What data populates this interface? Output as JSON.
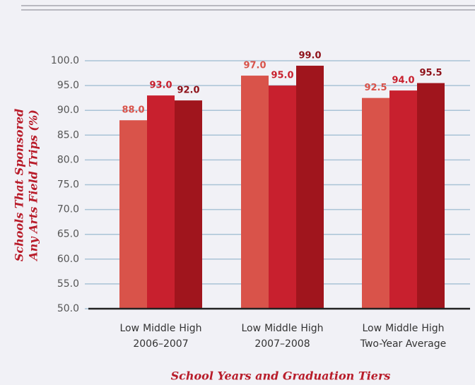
{
  "chart_data": {
    "type": "bar",
    "x_label": "School Years and Graduation Tiers",
    "y_label": [
      "Schools That Sponsored",
      "Any Arts Field Trips  (%)"
    ],
    "categories": [
      "2006–2007",
      "2007–2008",
      "Two-Year Average"
    ],
    "series": [
      {
        "name": "Low",
        "color": "#d9534a",
        "values": [
          88,
          97,
          92.5
        ],
        "value_labels": [
          "88.0",
          "97.0",
          "92.5"
        ]
      },
      {
        "name": "Middle",
        "color": "#c8202e",
        "values": [
          93,
          95,
          94
        ],
        "value_labels": [
          "93.0",
          "95.0",
          "94.0"
        ]
      },
      {
        "name": "High",
        "color": "#a0151d",
        "values": [
          92,
          99,
          95.5
        ],
        "value_labels": [
          "92.0",
          "99.0",
          "95.5"
        ]
      }
    ],
    "ylim": [
      50,
      100
    ],
    "yticks": [
      {
        "value": 50,
        "label": "50.0"
      },
      {
        "value": 55,
        "label": "55.0"
      },
      {
        "value": 60,
        "label": "60.0"
      },
      {
        "value": 65,
        "label": "65.0"
      },
      {
        "value": 70,
        "label": "70.0"
      },
      {
        "value": 75,
        "label": "75.0"
      },
      {
        "value": 80,
        "label": "80.0"
      },
      {
        "value": 85,
        "label": "85.0"
      },
      {
        "value": 90,
        "label": "90.0"
      },
      {
        "value": 95,
        "label": "95.0"
      },
      {
        "value": 100,
        "label": "100.0"
      }
    ],
    "grid": true
  }
}
